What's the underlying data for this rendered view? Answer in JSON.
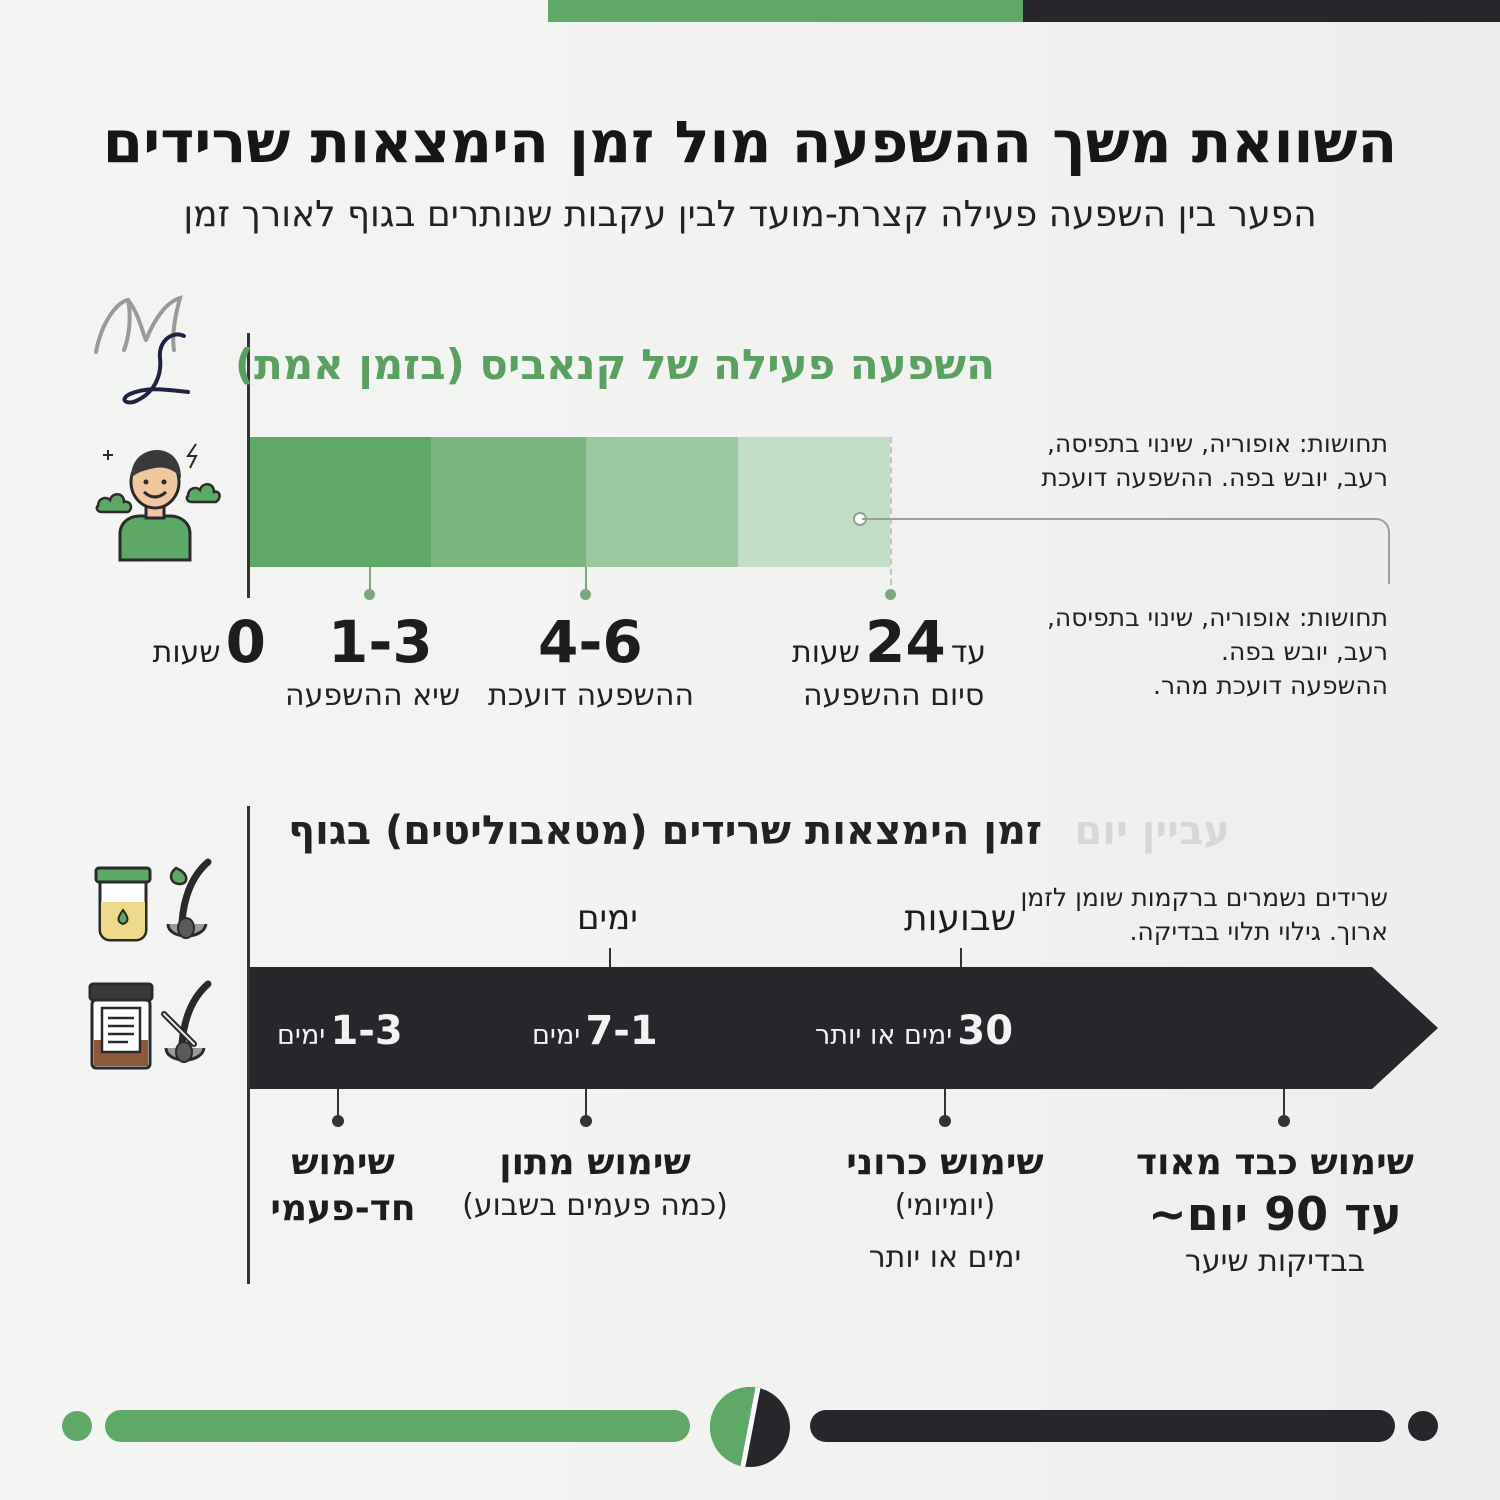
{
  "title": "השוואת משך ההשפעה מול זמן הימצאות שרידים",
  "subtitle": "הפער בין השפעה פעילה קצרת-מועד לבין עקבות שנותרים בגוף לאורך זמן",
  "colors": {
    "green": "#5fa866",
    "dark": "#25272a",
    "accent_green_text": "#5aa060"
  },
  "section1": {
    "title": "השפעה פעילה של קנאביס (בזמן אמת)",
    "sensations_top": [
      "תחושות: אופוריה, שינוי בתפיסה,",
      "רעב, יובש בפה. ההשפעה דועכת"
    ],
    "sensations_bottom": [
      "תחושות: אופוריה, שינוי בתפיסה,",
      "רעב, יובש בפה.",
      "ההשפעה דועכת מהר."
    ],
    "timeline": [
      {
        "value": "0",
        "unit": "שעות",
        "caption": ""
      },
      {
        "value": "1-3",
        "unit": "",
        "caption": "שיא ההשפעה"
      },
      {
        "value": "4-6",
        "unit": "",
        "caption": "ההשפעה דועכת"
      },
      {
        "prefix": "עד",
        "value": "24",
        "unit": "שעות",
        "caption": "סיום ההשפעה"
      }
    ],
    "icon": "person-effect-icon"
  },
  "section2": {
    "title": "זמן הימצאות שרידים (מטאבוליטים) בגוף",
    "ghost_title": "עביין יום",
    "note": [
      "שרידים נשמרים ברקמות שומן לזמן",
      "ארוך. גילוי תלוי בבדיקה."
    ],
    "scale_labels": {
      "days": "ימים",
      "weeks": "שבועות"
    },
    "arrow": [
      {
        "value": "1-3",
        "unit": "ימים"
      },
      {
        "value": "7-1",
        "unit": "ימים"
      },
      {
        "value": "30",
        "unit": "ימים או יותר"
      }
    ],
    "usage": [
      {
        "head": [
          "שימוש",
          "חד-פעמי"
        ],
        "sub": []
      },
      {
        "head": [
          "שימוש מתון"
        ],
        "sub": [
          "(כמה פעמים בשבוע)"
        ]
      },
      {
        "head": [
          "שימוש כרוני"
        ],
        "sub": [
          "(יומיומי)",
          "ימים או יותר"
        ]
      },
      {
        "head": [
          "שימוש כבד מאוד",
          "עד 90 יום~"
        ],
        "sub": [
          "בבדיקות שיער"
        ]
      }
    ],
    "icons": [
      "urine-test-icon",
      "hair-test-icon",
      "lab-sample-icon",
      "hair-follicle-icon"
    ]
  }
}
